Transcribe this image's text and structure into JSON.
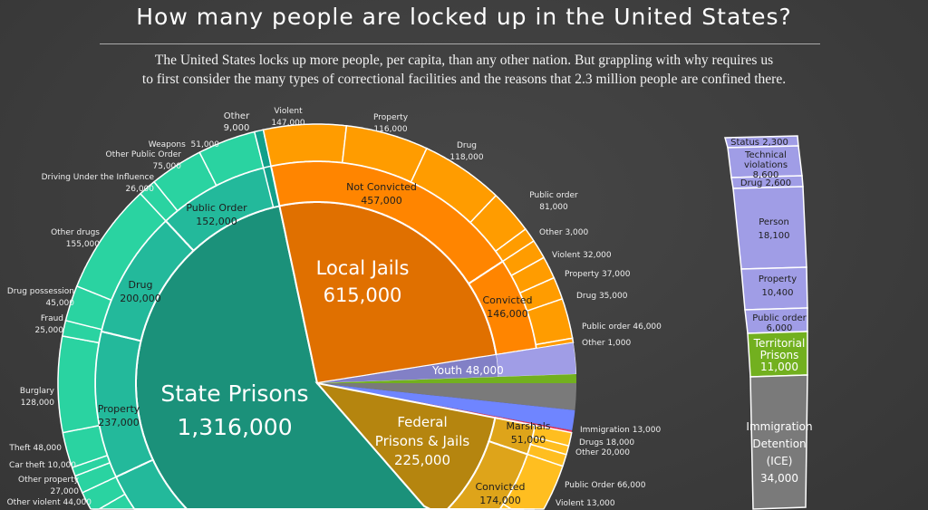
{
  "title": "How many people are locked up in the United States?",
  "subtitle": [
    "The United States locks up more people, per capita, than any other nation.  But grappling with why requires us",
    "to first consider the many types of correctional facilities and the reasons that 2.3 million people are confined there."
  ],
  "colors": {
    "state_inner": "#1b917a",
    "state_mid": "#23b99b",
    "state_outer": "#2ad3a1",
    "local_inner": "#e07000",
    "local_mid": "#ff8500",
    "local_outer": "#ff9c00",
    "federal_inner": "#b5850f",
    "federal_mid": "#dea41a",
    "federal_outer": "#ffbe20",
    "youth": "#a09de6",
    "territorial": "#72b01f",
    "immigration": "#7a7a7a",
    "blue": "#6f85ff",
    "red": "#e8385a"
  },
  "state": {
    "name": "State Prisons",
    "value": "1,316,000",
    "mid": [
      {
        "name": "Public Order",
        "value": "152,000"
      },
      {
        "name": "Drug",
        "value": "200,000"
      },
      {
        "name": "Property",
        "value": "237,000"
      }
    ],
    "outer": [
      {
        "name": "Other",
        "value": "9,000"
      },
      {
        "name": "Weapons",
        "value": "51,000"
      },
      {
        "name": "Other Public Order",
        "value": "75,000"
      },
      {
        "name": "Driving Under the Influence",
        "value": "26,000"
      },
      {
        "name": "Other drugs",
        "value": "155,000"
      },
      {
        "name": "Drug possession",
        "value": "45,000"
      },
      {
        "name": "Fraud",
        "value": "25,000"
      },
      {
        "name": "Burglary",
        "value": "128,000"
      },
      {
        "name": "Theft",
        "value": "48,000"
      },
      {
        "name": "Car theft",
        "value": "10,000"
      },
      {
        "name": "Other property",
        "value": "27,000"
      },
      {
        "name": "Other violent",
        "value": "44,000"
      }
    ]
  },
  "local": {
    "name": "Local Jails",
    "value": "615,000",
    "mid": [
      {
        "name": "Not Convicted",
        "value": "457,000"
      },
      {
        "name": "Convicted",
        "value": "146,000"
      }
    ],
    "not_convicted": [
      {
        "name": "Violent",
        "value": "147,000"
      },
      {
        "name": "Property",
        "value": "116,000"
      },
      {
        "name": "Drug",
        "value": "118,000"
      },
      {
        "name": "Public order",
        "value": "81,000"
      },
      {
        "name": "Other",
        "value": "3,000"
      }
    ],
    "convicted": [
      {
        "name": "Violent",
        "value": "32,000"
      },
      {
        "name": "Property",
        "value": "37,000"
      },
      {
        "name": "Drug",
        "value": "35,000"
      },
      {
        "name": "Public order",
        "value": "46,000"
      },
      {
        "name": "Other",
        "value": "1,000"
      }
    ]
  },
  "youth": {
    "name": "Youth",
    "value": "48,000"
  },
  "federal": {
    "name": [
      "Federal",
      "Prisons & Jails"
    ],
    "value": "225,000",
    "mid": [
      {
        "name": "Marshals",
        "value": "51,000"
      },
      {
        "name": "Convicted",
        "value": "174,000"
      }
    ],
    "outer": [
      {
        "name": "Immigration",
        "value": "13,000"
      },
      {
        "name": "Drugs",
        "value": "18,000"
      },
      {
        "name": "Other",
        "value": "20,000"
      },
      {
        "name": "Public Order",
        "value": "66,000"
      },
      {
        "name": "Violent",
        "value": "13,000"
      }
    ]
  },
  "bar": {
    "youth": [
      {
        "name": "Status",
        "value": "2,300"
      },
      {
        "name": [
          "Technical",
          "violations"
        ],
        "value": "8,600"
      },
      {
        "name": "Drug",
        "value": "2,600"
      },
      {
        "name": "Person",
        "value": "18,100"
      },
      {
        "name": "Property",
        "value": "10,400"
      },
      {
        "name": "Public order",
        "value": "6,000"
      }
    ],
    "territorial": {
      "name": [
        "Territorial",
        "Prisons"
      ],
      "value": "11,000"
    },
    "ice": {
      "name": [
        "Immigration",
        "Detention",
        "(ICE)"
      ],
      "value": "34,000"
    }
  }
}
